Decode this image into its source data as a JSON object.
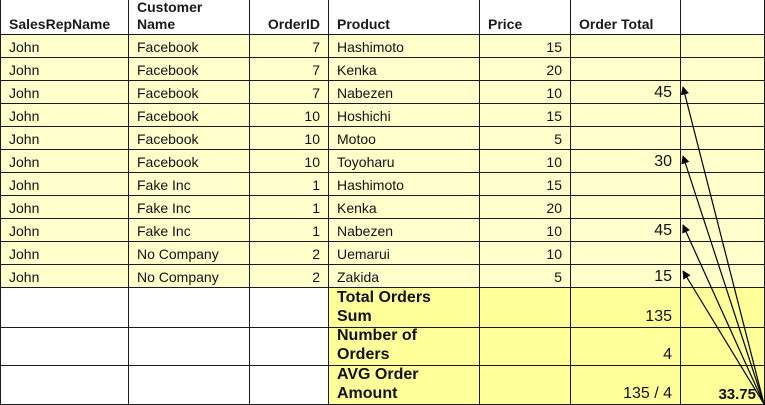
{
  "colors": {
    "data_fill": "#ffffcc",
    "summary_fill": "#ffff99",
    "header_fill": "#ffffff",
    "border": "#1a1a1a",
    "arrow": "#000000"
  },
  "headers": [
    "SalesRepName",
    "Customer\nName",
    "OrderID",
    "Product",
    "Price",
    "Order Total",
    ""
  ],
  "rows": [
    [
      "John",
      "Facebook",
      "7",
      "Hashimoto",
      "15",
      ""
    ],
    [
      "John",
      "Facebook",
      "7",
      "Kenka",
      "20",
      ""
    ],
    [
      "John",
      "Facebook",
      "7",
      "Nabezen",
      "10",
      "45"
    ],
    [
      "John",
      "Facebook",
      "10",
      "Hoshichi",
      "15",
      ""
    ],
    [
      "John",
      "Facebook",
      "10",
      "Motoo",
      "5",
      ""
    ],
    [
      "John",
      "Facebook",
      "10",
      "Toyoharu",
      "10",
      "30"
    ],
    [
      "John",
      "Fake Inc",
      "1",
      "Hashimoto",
      "15",
      ""
    ],
    [
      "John",
      "Fake Inc",
      "1",
      "Kenka",
      "20",
      ""
    ],
    [
      "John",
      "Fake Inc",
      "1",
      "Nabezen",
      "10",
      "45"
    ],
    [
      "John",
      "No Company",
      "2",
      "Uemarui",
      "10",
      ""
    ],
    [
      "John",
      "No Company",
      "2",
      "Zakida",
      "5",
      "15"
    ]
  ],
  "summary": [
    {
      "label": "Total Orders\nSum",
      "value": "135",
      "result": ""
    },
    {
      "label": "Number of\nOrders",
      "value": "4",
      "result": ""
    },
    {
      "label": "AVG Order\nAmount",
      "value": "135 / 4",
      "result": "33.75"
    }
  ]
}
